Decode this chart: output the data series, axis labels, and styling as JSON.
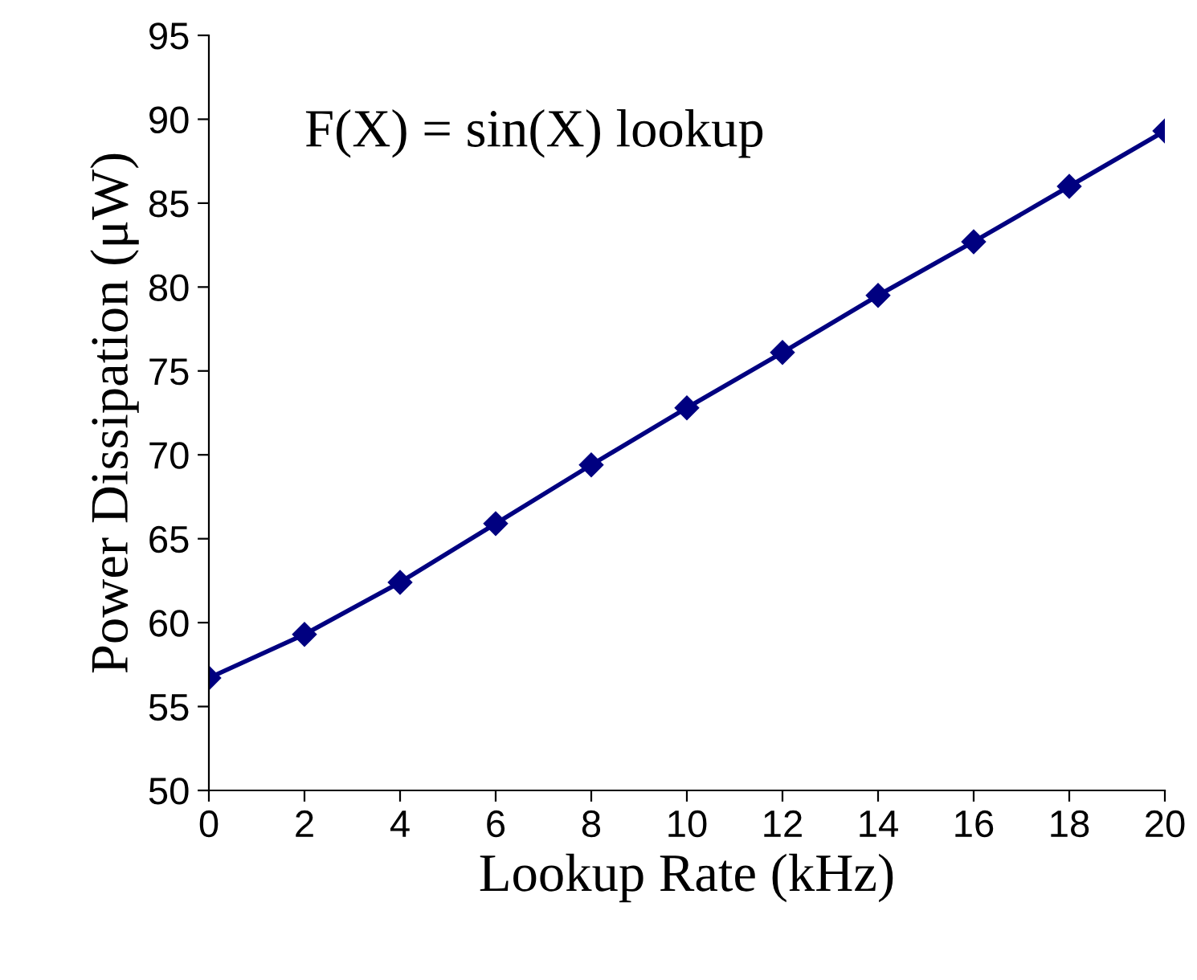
{
  "chart_data": {
    "type": "line",
    "xlabel": "Lookup Rate (kHz)",
    "ylabel": "Power Dissipation (μW)",
    "annotations": [
      "F(X) = sin(X) lookup"
    ],
    "x": [
      0,
      2,
      4,
      6,
      8,
      10,
      12,
      14,
      16,
      18,
      20
    ],
    "series": [
      {
        "color": "#000080",
        "values": [
          56.7,
          59.3,
          62.4,
          65.9,
          69.4,
          72.8,
          76.1,
          79.5,
          82.7,
          86.0,
          89.3
        ]
      }
    ],
    "xlim": [
      0,
      20
    ],
    "xticks": [
      0,
      2,
      4,
      6,
      8,
      10,
      12,
      14,
      16,
      18,
      20
    ],
    "ylim": [
      50,
      95
    ],
    "yticks": [
      50,
      55,
      60,
      65,
      70,
      75,
      80,
      85,
      90,
      95
    ],
    "grid": false,
    "legend": false,
    "marker": "diamond",
    "line_style": "solid"
  }
}
